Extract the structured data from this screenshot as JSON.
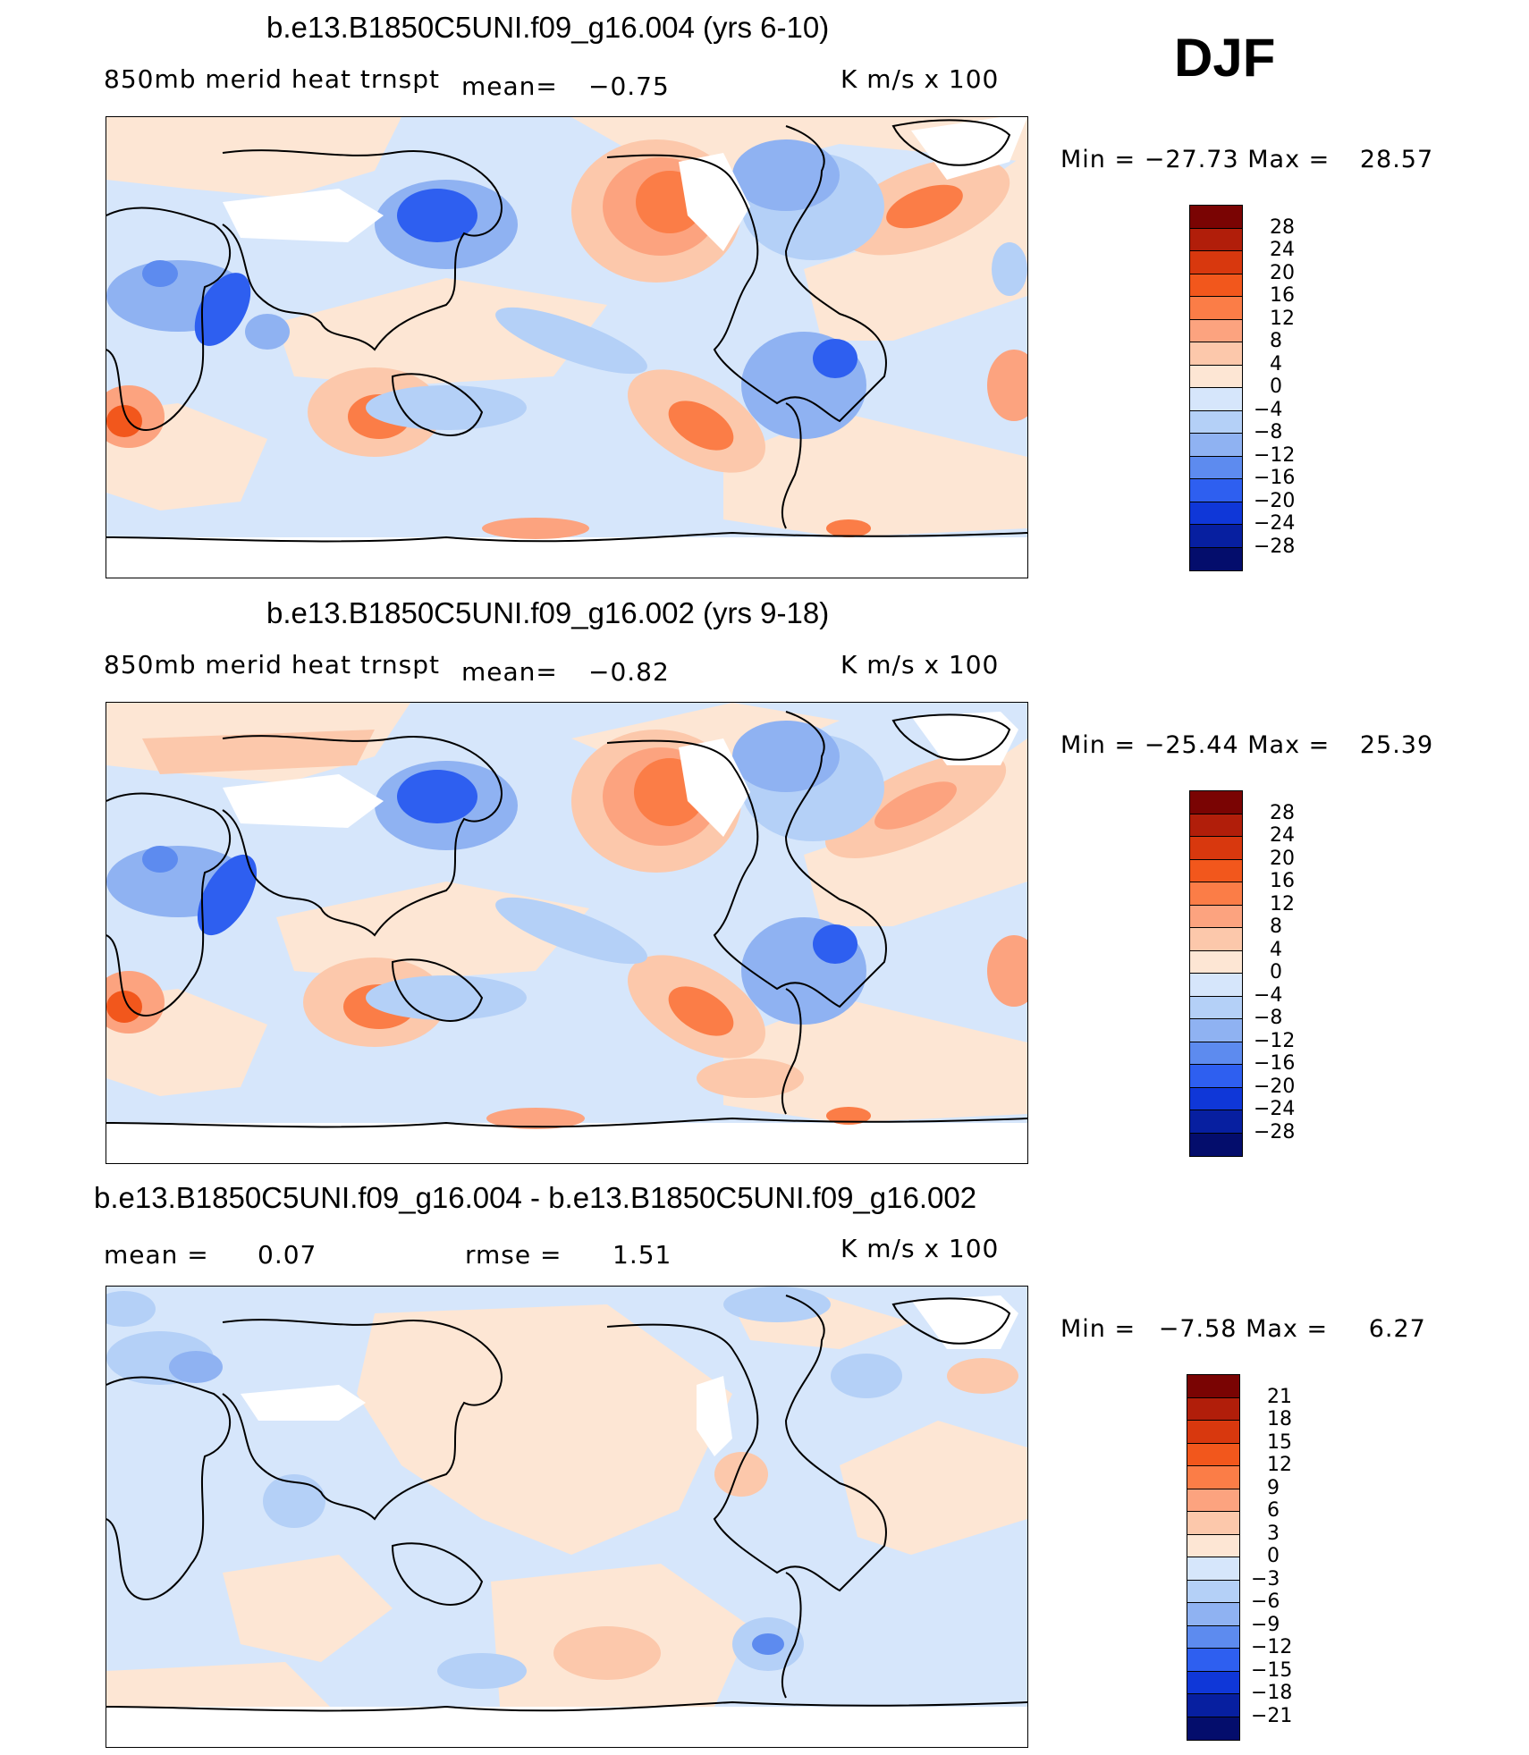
{
  "season": "DJF",
  "panels": [
    {
      "title": "b.e13.B1850C5UNI.f09_g16.004 (yrs 6-10)",
      "left_label": "850mb merid heat trnspt",
      "mean_label": "mean=",
      "mean_value": "−0.75",
      "units": "K m/s x 100",
      "min_label": "Min =",
      "min_value": "−27.73",
      "max_label": "Max =",
      "max_value": "28.57",
      "levels": [
        "28",
        "24",
        "20",
        "16",
        "12",
        "8",
        "4",
        "0",
        "−4",
        "−8",
        "−12",
        "−16",
        "−20",
        "−24",
        "−28"
      ]
    },
    {
      "title": "b.e13.B1850C5UNI.f09_g16.002 (yrs 9-18)",
      "left_label": "850mb merid heat trnspt",
      "mean_label": "mean=",
      "mean_value": "−0.82",
      "units": "K m/s x 100",
      "min_label": "Min =",
      "min_value": "−25.44",
      "max_label": "Max =",
      "max_value": "25.39",
      "levels": [
        "28",
        "24",
        "20",
        "16",
        "12",
        "8",
        "4",
        "0",
        "−4",
        "−8",
        "−12",
        "−16",
        "−20",
        "−24",
        "−28"
      ]
    },
    {
      "title": "b.e13.B1850C5UNI.f09_g16.004 - b.e13.B1850C5UNI.f09_g16.002",
      "mean_label": "mean =",
      "mean_value": "0.07",
      "rmse_label": "rmse =",
      "rmse_value": "1.51",
      "units": "K m/s x 100",
      "min_label": "Min =",
      "min_value": "−7.58",
      "max_label": "Max =",
      "max_value": "6.27",
      "levels": [
        "21",
        "18",
        "15",
        "12",
        "9",
        "6",
        "3",
        "0",
        "−3",
        "−6",
        "−9",
        "−12",
        "−15",
        "−18",
        "−21"
      ]
    }
  ],
  "colorbar_colors": [
    "#7a0403",
    "#b11e0a",
    "#d8380e",
    "#f2571c",
    "#fb7d47",
    "#fca37f",
    "#fcc8ab",
    "#fde6d4",
    "#d6e6fb",
    "#b4d0f7",
    "#8fb2f2",
    "#5d8bef",
    "#2e5ff0",
    "#0f37d8",
    "#071fa0",
    "#040d6c"
  ]
}
